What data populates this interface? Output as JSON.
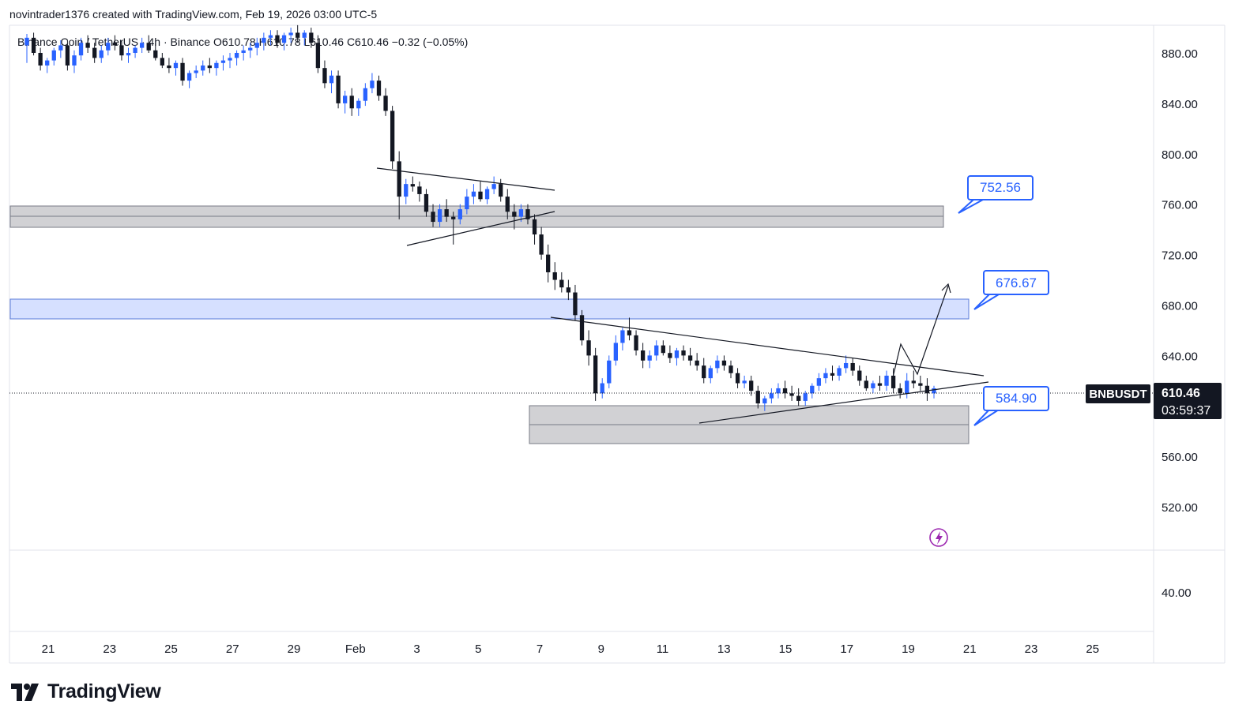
{
  "caption": "novintrader1376 created with TradingView.com, Feb 19, 2026 03:00 UTC-5",
  "legend": {
    "symbol_text": "Binance Coin / TetherUS · 4h · Binance",
    "o": "O610.78",
    "h": "H610.78",
    "l": "L610.46",
    "c": "C610.46",
    "chg": "−0.32 (−0.05%)"
  },
  "footer": {
    "brand": "TradingView",
    "logo_icon": "tradingview-logo-icon"
  },
  "colors": {
    "up": "#2962ff",
    "down": "#131722",
    "zone_gray": "#d1d1d4",
    "zone_blue": "#d6e0ff",
    "label_blue": "#2962ff"
  },
  "chart_data": {
    "type": "candlestick",
    "timeframe": "4h",
    "symbol": "BNBUSDT",
    "x_ticks": [
      "21",
      "23",
      "25",
      "27",
      "29",
      "Feb",
      "3",
      "5",
      "7",
      "9",
      "11",
      "13",
      "15",
      "17",
      "19",
      "21",
      "23",
      "25"
    ],
    "y_ticks": [
      "880.00",
      "840.00",
      "800.00",
      "760.00",
      "720.00",
      "680.00",
      "640.00",
      "560.00",
      "520.00"
    ],
    "ylim": [
      500,
      900
    ],
    "sub_pane_tick": "40.00",
    "last_price": {
      "symbol": "BNBUSDT",
      "price": "610.46",
      "countdown": "03:59:37",
      "value": 610.46
    },
    "annotations": [
      {
        "text": "752.56",
        "value": 752.56
      },
      {
        "text": "676.67",
        "value": 676.67
      },
      {
        "text": "584.90",
        "value": 584.9
      }
    ],
    "zones": [
      {
        "name": "resistance-zone-upper",
        "from": 742,
        "to": 760,
        "color": "gray"
      },
      {
        "name": "resistance-zone-mid",
        "from": 669,
        "to": 684,
        "color": "blue"
      },
      {
        "name": "support-zone",
        "from": 570,
        "to": 600,
        "color": "gray"
      }
    ],
    "grid": false,
    "candles": [
      [
        886,
        895,
        872,
        892
      ],
      [
        892,
        896,
        878,
        880
      ],
      [
        880,
        884,
        866,
        870
      ],
      [
        870,
        876,
        864,
        874
      ],
      [
        874,
        884,
        870,
        882
      ],
      [
        882,
        890,
        876,
        886
      ],
      [
        886,
        890,
        866,
        870
      ],
      [
        870,
        882,
        864,
        878
      ],
      [
        878,
        892,
        874,
        888
      ],
      [
        888,
        894,
        880,
        884
      ],
      [
        884,
        888,
        872,
        876
      ],
      [
        876,
        886,
        872,
        882
      ],
      [
        882,
        892,
        878,
        888
      ],
      [
        888,
        894,
        882,
        886
      ],
      [
        886,
        890,
        874,
        878
      ],
      [
        878,
        884,
        872,
        880
      ],
      [
        880,
        886,
        876,
        884
      ],
      [
        884,
        892,
        880,
        888
      ],
      [
        888,
        894,
        880,
        882
      ],
      [
        882,
        888,
        874,
        876
      ],
      [
        876,
        880,
        868,
        870
      ],
      [
        870,
        876,
        864,
        868
      ],
      [
        868,
        874,
        862,
        872
      ],
      [
        872,
        876,
        854,
        858
      ],
      [
        858,
        866,
        852,
        864
      ],
      [
        864,
        870,
        860,
        866
      ],
      [
        866,
        874,
        862,
        870
      ],
      [
        870,
        876,
        864,
        868
      ],
      [
        868,
        874,
        862,
        872
      ],
      [
        872,
        878,
        866,
        874
      ],
      [
        874,
        880,
        868,
        876
      ],
      [
        876,
        882,
        870,
        880
      ],
      [
        880,
        886,
        874,
        882
      ],
      [
        882,
        888,
        876,
        884
      ],
      [
        884,
        892,
        878,
        888
      ],
      [
        888,
        896,
        882,
        892
      ],
      [
        892,
        898,
        886,
        894
      ],
      [
        894,
        898,
        884,
        888
      ],
      [
        888,
        896,
        882,
        894
      ],
      [
        894,
        900,
        888,
        896
      ],
      [
        896,
        902,
        888,
        892
      ],
      [
        892,
        898,
        886,
        896
      ],
      [
        896,
        900,
        884,
        888
      ],
      [
        888,
        894,
        864,
        868
      ],
      [
        868,
        874,
        852,
        856
      ],
      [
        856,
        866,
        848,
        862
      ],
      [
        862,
        866,
        836,
        840
      ],
      [
        840,
        850,
        832,
        846
      ],
      [
        846,
        852,
        830,
        836
      ],
      [
        836,
        844,
        830,
        842
      ],
      [
        842,
        856,
        838,
        852
      ],
      [
        852,
        864,
        848,
        858
      ],
      [
        858,
        862,
        842,
        846
      ],
      [
        846,
        852,
        830,
        834
      ],
      [
        834,
        838,
        788,
        794
      ],
      [
        794,
        802,
        748,
        766
      ],
      [
        766,
        780,
        760,
        776
      ],
      [
        776,
        782,
        770,
        774
      ],
      [
        774,
        778,
        762,
        768
      ],
      [
        768,
        772,
        750,
        754
      ],
      [
        754,
        760,
        742,
        746
      ],
      [
        746,
        760,
        742,
        756
      ],
      [
        756,
        764,
        746,
        750
      ],
      [
        750,
        754,
        728,
        748
      ],
      [
        748,
        760,
        744,
        756
      ],
      [
        756,
        772,
        752,
        766
      ],
      [
        766,
        776,
        760,
        770
      ],
      [
        770,
        778,
        762,
        764
      ],
      [
        764,
        774,
        760,
        772
      ],
      [
        772,
        782,
        768,
        776
      ],
      [
        776,
        780,
        762,
        766
      ],
      [
        766,
        772,
        748,
        754
      ],
      [
        754,
        760,
        740,
        750
      ],
      [
        750,
        760,
        746,
        756
      ],
      [
        756,
        760,
        744,
        748
      ],
      [
        748,
        752,
        728,
        736
      ],
      [
        736,
        742,
        716,
        720
      ],
      [
        720,
        728,
        698,
        706
      ],
      [
        706,
        714,
        692,
        700
      ],
      [
        700,
        706,
        690,
        694
      ],
      [
        694,
        700,
        684,
        690
      ],
      [
        690,
        696,
        668,
        672
      ],
      [
        672,
        676,
        648,
        652
      ],
      [
        652,
        660,
        632,
        640
      ],
      [
        640,
        646,
        604,
        610
      ],
      [
        610,
        622,
        606,
        618
      ],
      [
        618,
        640,
        614,
        636
      ],
      [
        636,
        656,
        632,
        650
      ],
      [
        650,
        662,
        644,
        660
      ],
      [
        660,
        670,
        652,
        656
      ],
      [
        656,
        660,
        640,
        644
      ],
      [
        644,
        650,
        630,
        636
      ],
      [
        636,
        644,
        630,
        640
      ],
      [
        640,
        652,
        636,
        648
      ],
      [
        648,
        652,
        640,
        642
      ],
      [
        642,
        648,
        634,
        638
      ],
      [
        638,
        646,
        632,
        644
      ],
      [
        644,
        648,
        636,
        640
      ],
      [
        640,
        646,
        632,
        636
      ],
      [
        636,
        642,
        628,
        632
      ],
      [
        632,
        638,
        618,
        622
      ],
      [
        622,
        632,
        618,
        630
      ],
      [
        630,
        640,
        626,
        636
      ],
      [
        636,
        640,
        628,
        632
      ],
      [
        632,
        636,
        622,
        626
      ],
      [
        626,
        630,
        614,
        618
      ],
      [
        618,
        624,
        614,
        620
      ],
      [
        620,
        624,
        608,
        612
      ],
      [
        612,
        616,
        598,
        602
      ],
      [
        602,
        608,
        596,
        606
      ],
      [
        606,
        614,
        602,
        610
      ],
      [
        610,
        618,
        606,
        614
      ],
      [
        614,
        620,
        606,
        610
      ],
      [
        610,
        616,
        604,
        608
      ],
      [
        608,
        614,
        600,
        604
      ],
      [
        604,
        612,
        600,
        610
      ],
      [
        610,
        618,
        606,
        616
      ],
      [
        616,
        626,
        612,
        622
      ],
      [
        622,
        630,
        618,
        626
      ],
      [
        626,
        632,
        620,
        624
      ],
      [
        624,
        632,
        620,
        630
      ],
      [
        630,
        640,
        626,
        634
      ],
      [
        634,
        638,
        624,
        628
      ],
      [
        628,
        632,
        616,
        620
      ],
      [
        620,
        624,
        612,
        614
      ],
      [
        614,
        620,
        610,
        618
      ],
      [
        618,
        624,
        612,
        616
      ],
      [
        616,
        628,
        612,
        624
      ],
      [
        624,
        630,
        610,
        614
      ],
      [
        614,
        618,
        606,
        610
      ],
      [
        610,
        626,
        606,
        620
      ],
      [
        620,
        628,
        614,
        618
      ],
      [
        618,
        624,
        612,
        616
      ],
      [
        616,
        622,
        604,
        610
      ],
      [
        610,
        616,
        606,
        614
      ]
    ]
  }
}
